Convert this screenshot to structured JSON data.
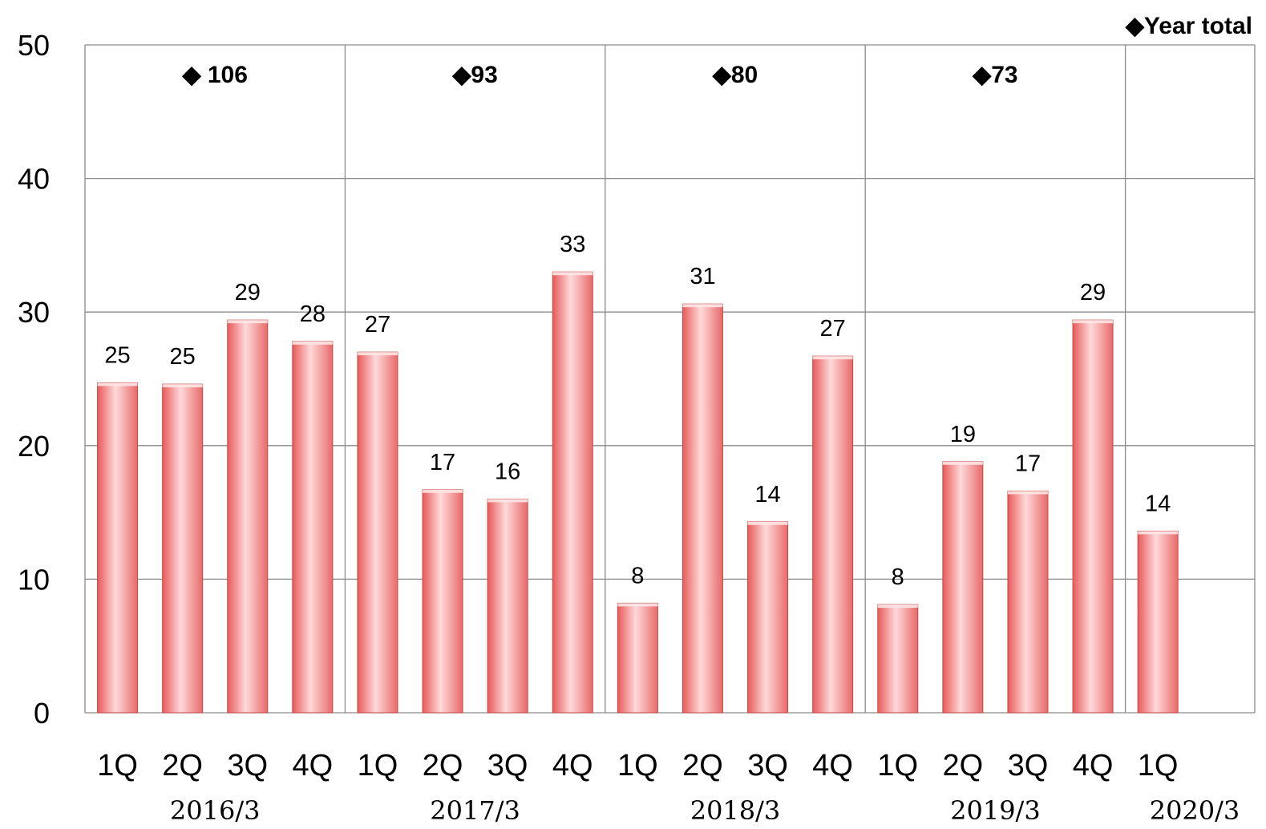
{
  "chart_data": {
    "type": "bar",
    "ylim": [
      0,
      50
    ],
    "yticks": [
      "0",
      "10",
      "20",
      "30",
      "40",
      "50"
    ],
    "categories": [
      "1Q",
      "2Q",
      "3Q",
      "4Q",
      "1Q",
      "2Q",
      "3Q",
      "4Q",
      "1Q",
      "2Q",
      "3Q",
      "4Q",
      "1Q",
      "2Q",
      "3Q",
      "4Q",
      "1Q"
    ],
    "values": [
      24.7,
      24.6,
      29.4,
      27.8,
      27.0,
      16.7,
      16.0,
      33.0,
      8.2,
      30.6,
      14.3,
      26.7,
      8.1,
      18.8,
      16.6,
      29.4,
      13.6
    ],
    "data_labels": [
      "25",
      "25",
      "29",
      "28",
      "27",
      "17",
      "16",
      "33",
      "8",
      "31",
      "14",
      "27",
      "8",
      "19",
      "17",
      "29",
      "14"
    ],
    "groups": [
      {
        "label": "2016/3",
        "total_label": "◆ 106"
      },
      {
        "label": "2017/3",
        "total_label": "◆93"
      },
      {
        "label": "2018/3",
        "total_label": "◆80"
      },
      {
        "label": "2019/3",
        "total_label": "◆73"
      },
      {
        "label": "2020/3",
        "total_label": ""
      }
    ],
    "legend": "◆Year total",
    "grid": true,
    "bar_color": "#f08080"
  }
}
